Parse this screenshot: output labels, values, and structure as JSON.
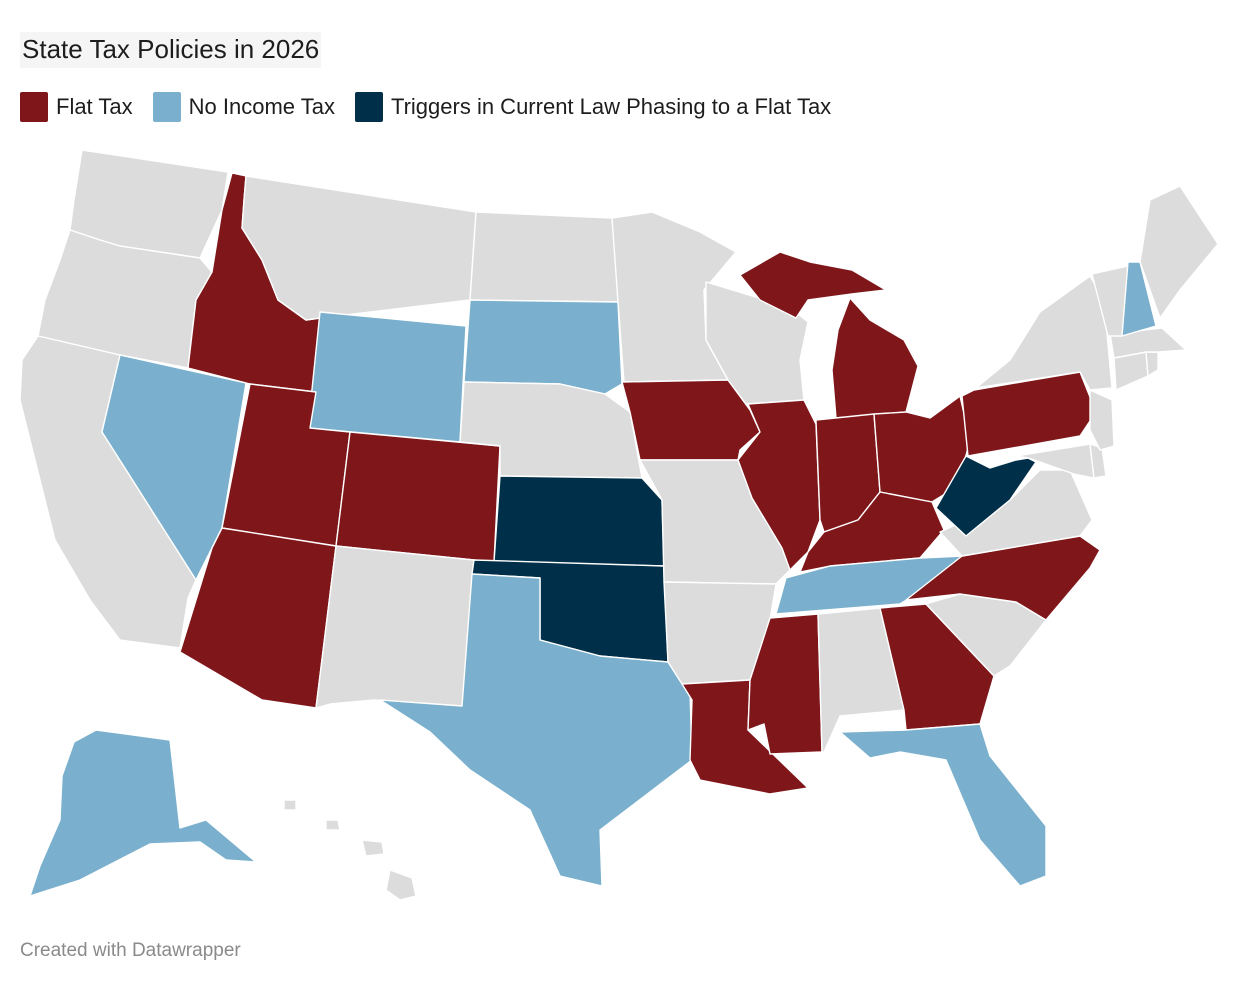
{
  "title": "State Tax Policies in 2026",
  "legend": [
    {
      "label": "Flat Tax",
      "category": "flat",
      "color": "#7f161a"
    },
    {
      "label": "No Income Tax",
      "category": "none",
      "color": "#7ab0cd"
    },
    {
      "label": "Triggers in Current Law Phasing to a Flat Tax",
      "category": "trigger",
      "color": "#003049"
    }
  ],
  "default_color": "#dcdcdc",
  "states": {
    "WA": "other",
    "OR": "other",
    "CA": "other",
    "NV": "none",
    "ID": "flat",
    "MT": "other",
    "WY": "none",
    "UT": "flat",
    "AZ": "flat",
    "CO": "flat",
    "NM": "other",
    "ND": "other",
    "SD": "none",
    "NE": "other",
    "KS": "trigger",
    "OK": "trigger",
    "TX": "none",
    "MN": "other",
    "IA": "flat",
    "MO": "other",
    "AR": "other",
    "LA": "flat",
    "WI": "other",
    "IL": "flat",
    "MI": "flat",
    "IN": "flat",
    "OH": "flat",
    "KY": "flat",
    "TN": "none",
    "MS": "flat",
    "AL": "other",
    "GA": "flat",
    "FL": "none",
    "SC": "other",
    "NC": "flat",
    "VA": "other",
    "WV": "trigger",
    "MD": "other",
    "DE": "other",
    "PA": "flat",
    "NJ": "other",
    "NY": "other",
    "CT": "other",
    "RI": "other",
    "MA": "other",
    "VT": "other",
    "NH": "none",
    "ME": "other",
    "AK": "none",
    "HI": "other"
  },
  "credit": "Created with Datawrapper"
}
